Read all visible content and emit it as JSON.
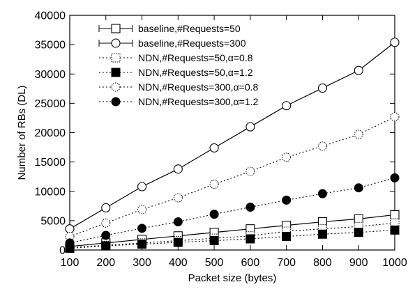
{
  "chart_data": {
    "type": "line",
    "title": "",
    "xlabel": "Packet size (bytes)",
    "ylabel": "Number of RBs (DL)",
    "x": [
      100,
      200,
      300,
      400,
      500,
      600,
      700,
      800,
      900,
      1000
    ],
    "xlim": [
      100,
      1000
    ],
    "ylim": [
      0,
      40000
    ],
    "xticks": [
      100,
      200,
      300,
      400,
      500,
      600,
      700,
      800,
      900,
      1000
    ],
    "yticks": [
      0,
      5000,
      10000,
      15000,
      20000,
      25000,
      30000,
      35000,
      40000
    ],
    "grid": false,
    "legend_position": "top-left",
    "series": [
      {
        "name": "baseline,#Requests=50",
        "values": [
          600,
          1200,
          1800,
          2400,
          3000,
          3600,
          4200,
          4800,
          5300,
          6000
        ],
        "marker": "square-open",
        "line": "solid"
      },
      {
        "name": "baseline,#Requests=300",
        "values": [
          3600,
          7200,
          10800,
          13800,
          17400,
          21000,
          24600,
          27600,
          30600,
          35400
        ],
        "marker": "circle-open",
        "line": "solid"
      },
      {
        "name": "NDN,#Requests=50,α=0.8",
        "values": [
          400,
          800,
          1200,
          1600,
          2000,
          2400,
          3200,
          3600,
          4000,
          4600
        ],
        "marker": "square-dotted",
        "line": "dotted"
      },
      {
        "name": "NDN,#Requests=50,α=1.2",
        "values": [
          300,
          700,
          1000,
          1300,
          1600,
          1900,
          2300,
          2700,
          3000,
          3400
        ],
        "marker": "square-filled",
        "line": "dotted"
      },
      {
        "name": "NDN,#Requests=300,α=0.8",
        "values": [
          2300,
          4600,
          6900,
          8900,
          11200,
          13400,
          15800,
          17700,
          19700,
          22700
        ],
        "marker": "circle-dotted",
        "line": "dotted"
      },
      {
        "name": "NDN,#Requests=300,α=1.2",
        "values": [
          1200,
          2500,
          3700,
          4800,
          6100,
          7300,
          8500,
          9600,
          10600,
          12300
        ],
        "marker": "circle-filled",
        "line": "dotted"
      }
    ]
  }
}
